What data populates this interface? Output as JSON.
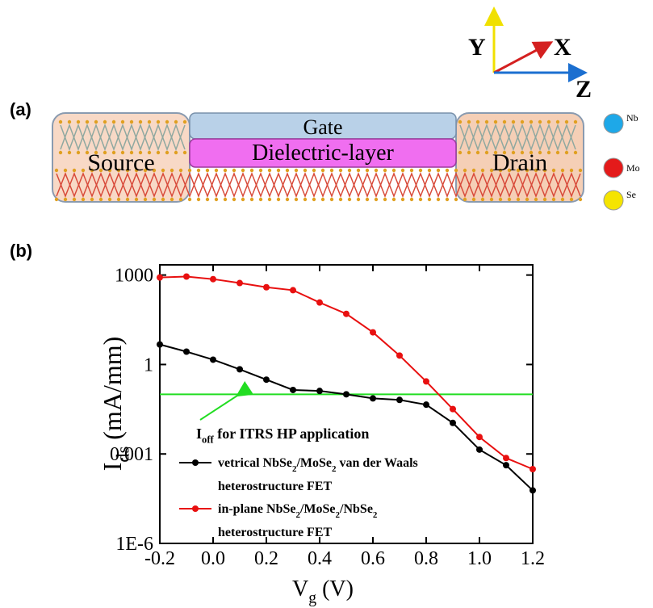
{
  "panel_labels": [
    "(a)",
    "(b)"
  ],
  "diagram": {
    "gate": "Gate",
    "dielectric": "Dielectric-layer",
    "source": "Source",
    "drain": "Drain",
    "axes": {
      "y": "Y",
      "x": "X",
      "z": "Z"
    },
    "atoms": [
      {
        "label": "Nb",
        "color": "#1ea8e8"
      },
      {
        "label": "Mo",
        "color": "#e41a1a"
      },
      {
        "label": "Se",
        "color": "#f5e400"
      }
    ]
  },
  "chart_data": {
    "type": "line",
    "log_y": true,
    "x": [
      -0.2,
      -0.1,
      0.0,
      0.1,
      0.2,
      0.3,
      0.4,
      0.5,
      0.6,
      0.7,
      0.8,
      0.9,
      1.0,
      1.1,
      1.2
    ],
    "series": [
      {
        "name": "vetrical NbSe2/MoSe2 van der Waals heterostructure FET",
        "color": "#000000",
        "values": [
          4.7,
          2.7,
          1.45,
          0.69,
          0.31,
          0.14,
          0.13,
          0.1,
          0.073,
          0.065,
          0.045,
          0.011,
          0.0014,
          0.00042,
          6e-05
        ]
      },
      {
        "name": "in-plane NbSe2/MoSe2/NbSe2 heterostructure FET",
        "color": "#e81010",
        "values": [
          830,
          890,
          730,
          540,
          390,
          310,
          120,
          50,
          12,
          2,
          0.27,
          0.032,
          0.0037,
          0.00073,
          0.00031
        ]
      }
    ],
    "xlim": [
      -0.2,
      1.2
    ],
    "xticks": [
      -0.2,
      {
        "value": 0,
        "label": "0.0"
      },
      0.2,
      0.4,
      0.6,
      0.8,
      {
        "value": 1,
        "label": "1.0"
      },
      1.2
    ],
    "ylim": [
      1e-06,
      2200
    ],
    "yticks": [
      {
        "value": 1e-06,
        "label": "1E-6"
      },
      0.001,
      1,
      1000
    ],
    "xlabel": [
      {
        "text": "V"
      },
      {
        "text": "g",
        "sub": true
      },
      {
        "text": " (V)"
      }
    ],
    "ylabel": [
      {
        "text": "I"
      },
      {
        "text": "ds",
        "sub": true
      },
      {
        "text": " (mA/mm)"
      }
    ],
    "hline": {
      "value": 0.1,
      "color": "#22dd22"
    },
    "annotation": [
      {
        "text": "I"
      },
      {
        "text": "off",
        "sub": true
      },
      {
        "text": " for ITRS HP application"
      }
    ]
  }
}
